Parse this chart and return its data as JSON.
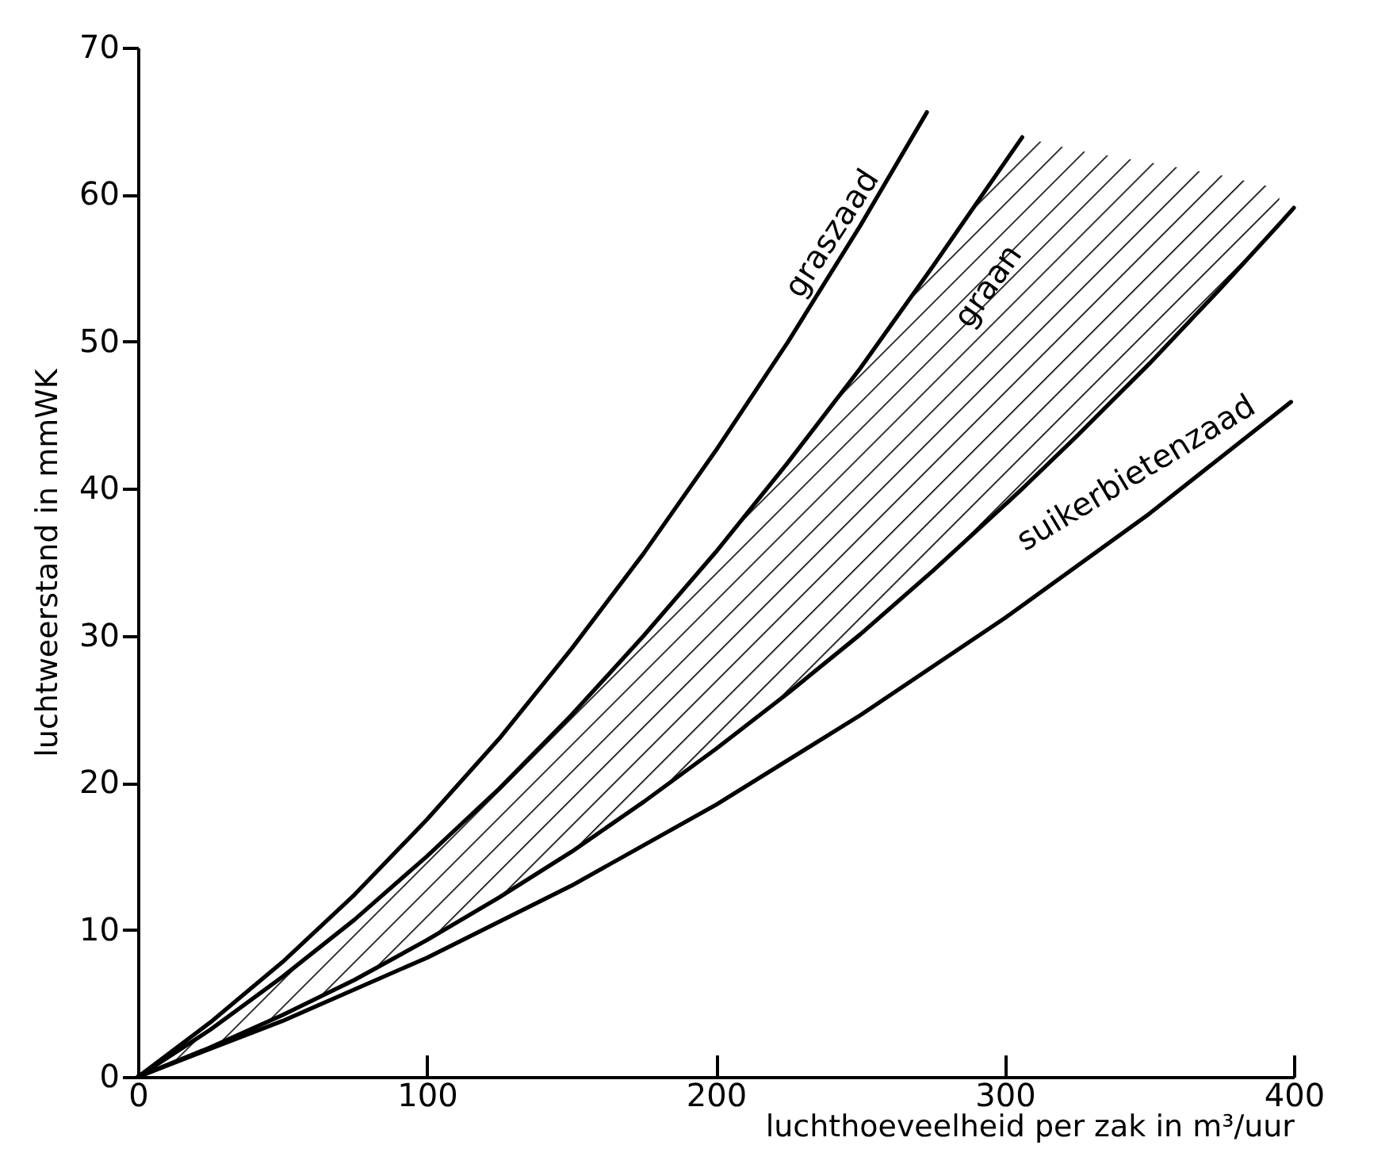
{
  "chart_data": {
    "type": "line",
    "xlabel": "luchthoeveelheid per zak in m³/uur",
    "ylabel": "luchtweerstand in mmWK",
    "xlim": [
      0,
      400
    ],
    "ylim": [
      0,
      70
    ],
    "xticks": [
      0,
      100,
      200,
      300,
      400
    ],
    "yticks": [
      0,
      10,
      20,
      30,
      40,
      50,
      60,
      70
    ],
    "grid": false,
    "series": [
      {
        "color": "#000000",
        "x": [
          0,
          25,
          50,
          75,
          100,
          125,
          150,
          175,
          200,
          225,
          250,
          273
        ],
        "values": [
          0,
          3.7,
          7.8,
          12.4,
          17.5,
          23.0,
          29.1,
          35.6,
          42.6,
          50.0,
          57.9,
          65.6
        ]
      },
      {
        "color": "#000000",
        "x": [
          0,
          25,
          50,
          75,
          100,
          125,
          150,
          175,
          200,
          225,
          250,
          275,
          300,
          306
        ],
        "values": [
          0,
          3.2,
          6.8,
          10.7,
          15.0,
          19.6,
          24.6,
          30.0,
          35.7,
          41.8,
          48.2,
          55.1,
          62.2,
          63.9
        ]
      },
      {
        "color": "#000000",
        "x": [
          0,
          25,
          50,
          75,
          100,
          125,
          150,
          175,
          200,
          225,
          250,
          275,
          300,
          306,
          325,
          350,
          375,
          395,
          400
        ],
        "values": [
          0,
          2.0,
          4.2,
          6.6,
          9.3,
          12.2,
          15.3,
          18.7,
          22.3,
          26.1,
          30.1,
          34.4,
          38.9,
          40.0,
          43.6,
          48.5,
          53.7,
          58.0,
          59.1
        ],
        "lower": [
          0,
          2.0,
          4.2,
          6.6,
          9.3,
          12.2,
          15.3,
          18.7,
          22.3,
          26.1,
          30.1,
          34.4,
          38.9,
          40.0,
          43.6,
          48.5,
          53.7,
          58.0,
          null
        ],
        "upper": [
          0,
          3.2,
          6.8,
          10.7,
          15.0,
          19.6,
          24.6,
          30.0,
          35.7,
          41.8,
          48.2,
          55.1,
          62.2,
          63.9,
          63.0,
          62.2,
          61.3,
          60.4,
          null
        ]
      },
      {
        "color": "#000000",
        "x": [
          0,
          50,
          100,
          150,
          200,
          250,
          300,
          350,
          399
        ],
        "values": [
          0,
          3.8,
          8.1,
          13.0,
          18.5,
          24.6,
          31.2,
          38.3,
          45.9
        ]
      }
    ],
    "annotations": [
      {
        "text": "graszaad",
        "x": 250,
        "y": 57.9
      },
      {
        "text": "graan",
        "x": 275,
        "y": 55.1
      },
      {
        "text": "suikerbietenzaad",
        "x": 350,
        "y": 38.3
      }
    ]
  }
}
